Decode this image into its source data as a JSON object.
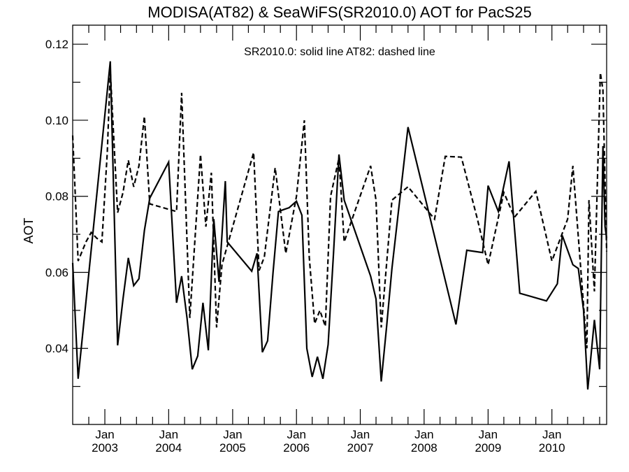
{
  "chart_data": {
    "type": "line",
    "title": "MODISA(AT82) & SeaWiFS(SR2010.0)  AOT for PacS25",
    "annotation": "SR2010.0: solid line   AT82: dashed line",
    "ylabel": "AOT",
    "xlabel": "",
    "xlim": [
      "2002-07-01",
      "2010-11-10"
    ],
    "ylim": [
      0.02,
      0.125
    ],
    "y_ticks": [
      0.04,
      0.06,
      0.08,
      0.1,
      0.12
    ],
    "y_tick_labels": [
      "0.04",
      "0.06",
      "0.08",
      "0.10",
      "0.12"
    ],
    "x_ticks": [
      {
        "date": "2003-01-01",
        "month": "Jan",
        "year": "2003"
      },
      {
        "date": "2004-01-01",
        "month": "Jan",
        "year": "2004"
      },
      {
        "date": "2005-01-01",
        "month": "Jan",
        "year": "2005"
      },
      {
        "date": "2006-01-01",
        "month": "Jan",
        "year": "2006"
      },
      {
        "date": "2007-01-01",
        "month": "Jan",
        "year": "2007"
      },
      {
        "date": "2008-01-01",
        "month": "Jan",
        "year": "2008"
      },
      {
        "date": "2009-01-01",
        "month": "Jan",
        "year": "2009"
      },
      {
        "date": "2010-01-01",
        "month": "Jan",
        "year": "2010"
      }
    ],
    "grid": false,
    "series": [
      {
        "name": "SR2010.0",
        "style": "solid",
        "points": [
          [
            "2002-07-01",
            0.0625
          ],
          [
            "2002-08-01",
            0.032
          ],
          [
            "2003-02-01",
            0.1155
          ],
          [
            "2003-03-15",
            0.0408
          ],
          [
            "2003-04-15",
            0.053
          ],
          [
            "2003-05-15",
            0.0638
          ],
          [
            "2003-06-15",
            0.0565
          ],
          [
            "2003-07-15",
            0.0583
          ],
          [
            "2003-08-15",
            0.071
          ],
          [
            "2003-09-15",
            0.0795
          ],
          [
            "2004-01-01",
            0.089
          ],
          [
            "2004-02-15",
            0.052
          ],
          [
            "2004-03-15",
            0.059
          ],
          [
            "2004-04-15",
            0.048
          ],
          [
            "2004-05-15",
            0.0345
          ],
          [
            "2004-06-15",
            0.038
          ],
          [
            "2004-07-15",
            0.052
          ],
          [
            "2004-08-15",
            0.0395
          ],
          [
            "2004-09-15",
            0.074
          ],
          [
            "2004-10-15",
            0.0575
          ],
          [
            "2004-11-20",
            0.084
          ],
          [
            "2004-12-01",
            0.068
          ],
          [
            "2005-04-20",
            0.0603
          ],
          [
            "2005-05-20",
            0.065
          ],
          [
            "2005-06-20",
            0.039
          ],
          [
            "2005-07-20",
            0.042
          ],
          [
            "2005-08-20",
            0.06
          ],
          [
            "2005-09-20",
            0.076
          ],
          [
            "2005-10-20",
            0.0765
          ],
          [
            "2005-11-20",
            0.077
          ],
          [
            "2006-01-01",
            0.0787
          ],
          [
            "2006-02-01",
            0.075
          ],
          [
            "2006-03-01",
            0.04
          ],
          [
            "2006-04-01",
            0.0325
          ],
          [
            "2006-05-01",
            0.0378
          ],
          [
            "2006-06-01",
            0.032
          ],
          [
            "2006-07-01",
            0.041
          ],
          [
            "2006-08-01",
            0.065
          ],
          [
            "2006-09-01",
            0.091
          ],
          [
            "2006-10-01",
            0.079
          ],
          [
            "2007-03-01",
            0.059
          ],
          [
            "2007-04-01",
            0.053
          ],
          [
            "2007-05-01",
            0.0313
          ],
          [
            "2007-06-01",
            0.046
          ],
          [
            "2007-07-01",
            0.061
          ],
          [
            "2007-10-01",
            0.0982
          ],
          [
            "2008-07-01",
            0.0463
          ],
          [
            "2008-09-01",
            0.0658
          ],
          [
            "2008-12-01",
            0.0652
          ],
          [
            "2009-01-01",
            0.0828
          ],
          [
            "2009-03-01",
            0.076
          ],
          [
            "2009-05-01",
            0.0892
          ],
          [
            "2009-07-01",
            0.0545
          ],
          [
            "2009-12-01",
            0.0525
          ],
          [
            "2010-02-01",
            0.057
          ],
          [
            "2010-03-01",
            0.0697
          ],
          [
            "2010-05-01",
            0.062
          ],
          [
            "2010-06-01",
            0.061
          ],
          [
            "2010-07-01",
            0.05
          ],
          [
            "2010-07-25",
            0.0292
          ],
          [
            "2010-09-01",
            0.0475
          ],
          [
            "2010-10-01",
            0.0345
          ],
          [
            "2010-10-20",
            0.0932
          ],
          [
            "2010-11-01",
            0.072
          ],
          [
            "2010-11-10",
            0.069
          ]
        ]
      },
      {
        "name": "AT82",
        "style": "dashed",
        "points": [
          [
            "2002-07-01",
            0.096
          ],
          [
            "2002-08-01",
            0.063
          ],
          [
            "2002-09-15",
            0.068
          ],
          [
            "2002-10-15",
            0.0705
          ],
          [
            "2002-11-15",
            0.069
          ],
          [
            "2002-12-15",
            0.068
          ],
          [
            "2003-01-15",
            0.0915
          ],
          [
            "2003-02-01",
            0.113
          ],
          [
            "2003-03-15",
            0.0757
          ],
          [
            "2003-04-15",
            0.081
          ],
          [
            "2003-05-15",
            0.0895
          ],
          [
            "2003-06-15",
            0.0825
          ],
          [
            "2003-07-15",
            0.088
          ],
          [
            "2003-08-15",
            0.101
          ],
          [
            "2003-09-15",
            0.078
          ],
          [
            "2004-02-15",
            0.076
          ],
          [
            "2004-03-15",
            0.1072
          ],
          [
            "2004-05-01",
            0.048
          ],
          [
            "2004-07-01",
            0.091
          ],
          [
            "2004-08-01",
            0.072
          ],
          [
            "2004-09-01",
            0.0862
          ],
          [
            "2004-10-01",
            0.0455
          ],
          [
            "2004-11-01",
            0.062
          ],
          [
            "2005-05-01",
            0.0915
          ],
          [
            "2005-06-01",
            0.0605
          ],
          [
            "2005-07-01",
            0.064
          ],
          [
            "2005-09-01",
            0.0875
          ],
          [
            "2005-11-01",
            0.065
          ],
          [
            "2006-01-01",
            0.08
          ],
          [
            "2006-02-15",
            0.1
          ],
          [
            "2006-03-15",
            0.064
          ],
          [
            "2006-04-15",
            0.0465
          ],
          [
            "2006-05-15",
            0.05
          ],
          [
            "2006-06-15",
            0.0458
          ],
          [
            "2006-07-15",
            0.08
          ],
          [
            "2006-09-01",
            0.09
          ],
          [
            "2006-10-01",
            0.068
          ],
          [
            "2007-03-01",
            0.088
          ],
          [
            "2007-04-01",
            0.079
          ],
          [
            "2007-05-01",
            0.0455
          ],
          [
            "2007-07-01",
            0.079
          ],
          [
            "2007-10-01",
            0.0825
          ],
          [
            "2008-03-01",
            0.074
          ],
          [
            "2008-05-01",
            0.0905
          ],
          [
            "2008-08-01",
            0.0903
          ],
          [
            "2008-11-01",
            0.074
          ],
          [
            "2009-01-01",
            0.062
          ],
          [
            "2009-04-01",
            0.081
          ],
          [
            "2009-06-01",
            0.0745
          ],
          [
            "2009-10-01",
            0.0813
          ],
          [
            "2010-01-01",
            0.063
          ],
          [
            "2010-04-01",
            0.074
          ],
          [
            "2010-05-01",
            0.088
          ],
          [
            "2010-07-20",
            0.04
          ],
          [
            "2010-08-01",
            0.079
          ],
          [
            "2010-09-01",
            0.055
          ],
          [
            "2010-10-05",
            0.1125
          ],
          [
            "2010-10-20",
            0.108
          ],
          [
            "2010-11-10",
            0.0655
          ]
        ]
      }
    ]
  }
}
